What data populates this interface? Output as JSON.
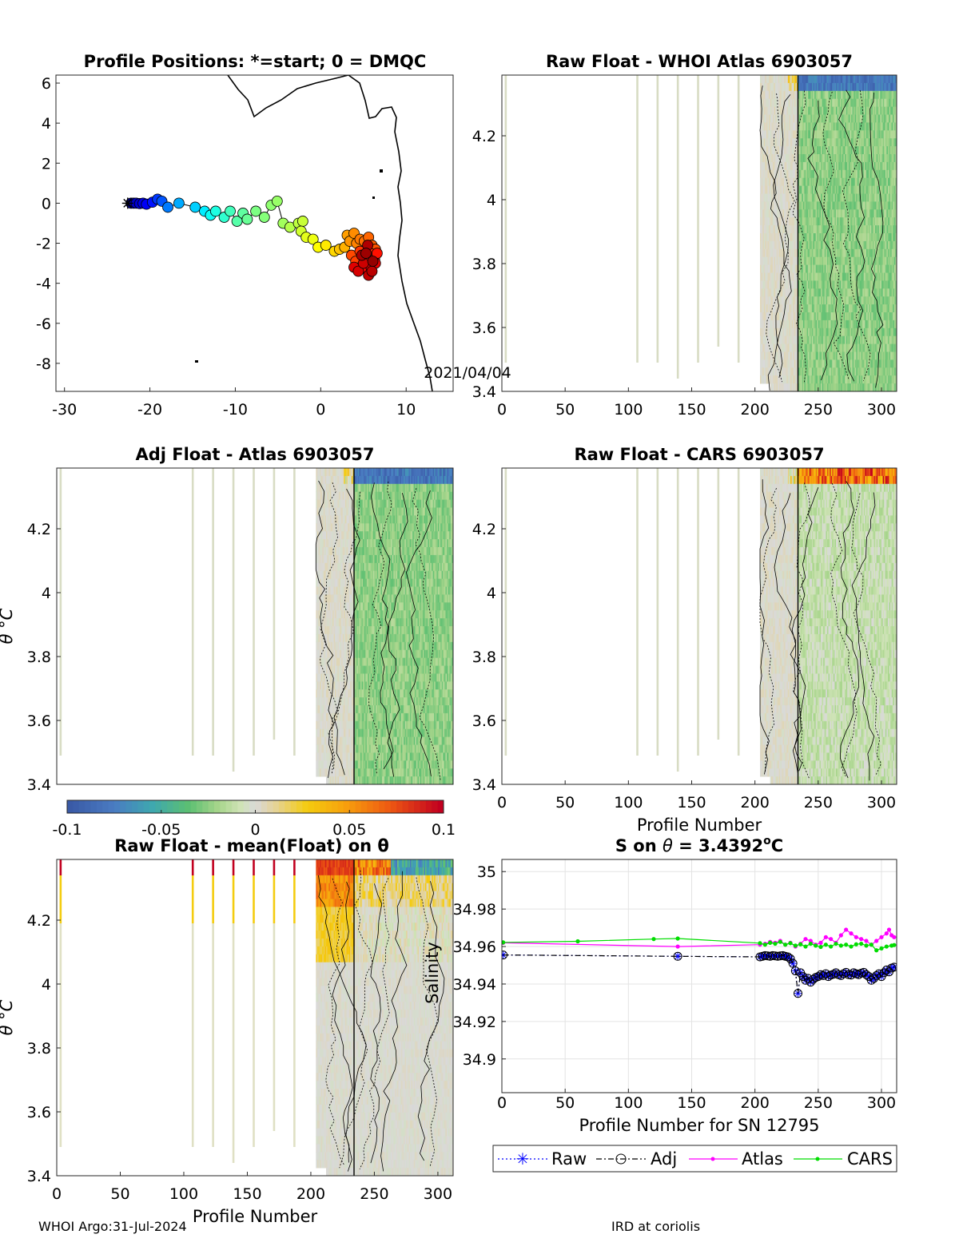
{
  "footer": {
    "left": "WHOI Argo:31-Jul-2024",
    "right": "IRD at coriolis"
  },
  "colorbar": {
    "ticks": [
      "-0.1",
      "-0.05",
      "0",
      "0.05",
      "0.1"
    ],
    "range": [
      -0.1,
      0.1
    ]
  },
  "chart_data": [
    {
      "id": "positions",
      "type": "scatter",
      "title": "Profile Positions: *=start; 0 = DMQC",
      "xlim": [
        -31,
        15.5
      ],
      "ylim": [
        -9.4,
        6.4
      ],
      "xticks": [
        "-30",
        "-20",
        "-10",
        "0",
        "10"
      ],
      "yticks": [
        "6",
        "4",
        "2",
        "0",
        "-2",
        "-4",
        "-6",
        "-8"
      ],
      "annotation": "2021/04/04",
      "start_marker": [
        -22.6,
        0.0
      ],
      "points": [
        [
          -22.2,
          0.0,
          0.0
        ],
        [
          -21.9,
          0.0,
          0.01
        ],
        [
          -21.6,
          0.0,
          0.02
        ],
        [
          -21.2,
          -0.02,
          0.03
        ],
        [
          -20.8,
          0.0,
          0.05
        ],
        [
          -20.4,
          -0.05,
          0.07
        ],
        [
          -19.7,
          0.05,
          0.1
        ],
        [
          -19.1,
          0.2,
          0.14
        ],
        [
          -18.6,
          0.1,
          0.17
        ],
        [
          -17.9,
          -0.2,
          0.21
        ],
        [
          -16.6,
          0.0,
          0.26
        ],
        [
          -14.7,
          -0.2,
          0.3
        ],
        [
          -13.6,
          -0.4,
          0.33
        ],
        [
          -12.9,
          -0.6,
          0.36
        ],
        [
          -12.3,
          -0.4,
          0.38
        ],
        [
          -11.3,
          -0.7,
          0.4
        ],
        [
          -10.6,
          -0.4,
          0.42
        ],
        [
          -9.8,
          -0.9,
          0.44
        ],
        [
          -9.1,
          -0.5,
          0.45
        ],
        [
          -8.6,
          -0.8,
          0.46
        ],
        [
          -7.6,
          -0.4,
          0.48
        ],
        [
          -6.6,
          -0.7,
          0.49
        ],
        [
          -5.8,
          -0.1,
          0.5
        ],
        [
          -5.1,
          0.1,
          0.51
        ],
        [
          -4.4,
          -1.0,
          0.52
        ],
        [
          -3.6,
          -1.2,
          0.54
        ],
        [
          -2.6,
          -1.0,
          0.55
        ],
        [
          -2.1,
          -0.9,
          0.56
        ],
        [
          -2.3,
          -1.4,
          0.57
        ],
        [
          -1.7,
          -1.7,
          0.59
        ],
        [
          -0.9,
          -1.8,
          0.6
        ],
        [
          -0.3,
          -2.2,
          0.62
        ],
        [
          0.6,
          -2.1,
          0.64
        ],
        [
          1.6,
          -2.4,
          0.66
        ],
        [
          2.2,
          -2.3,
          0.68
        ],
        [
          2.8,
          -2.2,
          0.7
        ],
        [
          3.1,
          -1.6,
          0.72
        ],
        [
          3.4,
          -1.9,
          0.73
        ],
        [
          3.9,
          -1.5,
          0.74
        ],
        [
          4.2,
          -2.0,
          0.75
        ],
        [
          4.6,
          -1.8,
          0.76
        ],
        [
          5.1,
          -1.9,
          0.77
        ],
        [
          5.6,
          -1.7,
          0.78
        ],
        [
          6.0,
          -2.1,
          0.79
        ],
        [
          6.4,
          -2.3,
          0.8
        ],
        [
          3.6,
          -2.6,
          0.81
        ],
        [
          4.1,
          -2.9,
          0.82
        ],
        [
          4.6,
          -2.4,
          0.83
        ],
        [
          5.2,
          -2.8,
          0.84
        ],
        [
          5.8,
          -2.5,
          0.85
        ],
        [
          6.3,
          -2.8,
          0.86
        ],
        [
          6.6,
          -2.5,
          0.87
        ],
        [
          4.9,
          -3.1,
          0.88
        ],
        [
          5.4,
          -3.3,
          0.89
        ],
        [
          5.9,
          -3.2,
          0.9
        ],
        [
          6.4,
          -3.0,
          0.91
        ],
        [
          3.9,
          -3.2,
          0.92
        ],
        [
          4.4,
          -3.4,
          0.93
        ],
        [
          5.0,
          -3.0,
          0.94
        ],
        [
          5.6,
          -3.6,
          0.95
        ],
        [
          6.0,
          -3.4,
          0.96
        ],
        [
          5.5,
          -2.1,
          0.97
        ],
        [
          4.8,
          -2.6,
          0.98
        ],
        [
          5.3,
          -2.5,
          0.99
        ],
        [
          6.1,
          -2.9,
          1.0
        ]
      ]
    },
    {
      "id": "raw-whoi",
      "type": "heatmap",
      "title": "Raw Float - WHOI Atlas  6903057",
      "xlim": [
        0,
        312
      ],
      "ylim": [
        3.4,
        4.39
      ],
      "xticks": [
        "0",
        "50",
        "100",
        "150",
        "200",
        "250",
        "300"
      ],
      "yticks": [
        "4.2",
        "4",
        "3.8",
        "3.6",
        "3.4"
      ],
      "ylabel": "θ °C",
      "ylabel_visible": false,
      "offset": 0,
      "sparse_profiles": [
        3,
        107,
        123,
        139,
        155,
        171,
        187
      ]
    },
    {
      "id": "adj-atlas",
      "type": "heatmap",
      "title": "Adj Float - Atlas  6903057",
      "xlim": [
        0,
        312
      ],
      "ylim": [
        3.4,
        4.39
      ],
      "yticks": [
        "4.2",
        "4",
        "3.8",
        "3.6",
        "3.4"
      ],
      "ylabel": "θ °C",
      "offset": 0,
      "sparse_profiles": [
        3,
        107,
        123,
        139,
        155,
        171,
        187
      ]
    },
    {
      "id": "raw-cars",
      "type": "heatmap",
      "title": "Raw Float - CARS  6903057",
      "xlim": [
        0,
        312
      ],
      "ylim": [
        3.4,
        4.39
      ],
      "xticks": [
        "0",
        "50",
        "100",
        "150",
        "200",
        "250",
        "300"
      ],
      "yticks": [
        "4.2",
        "4",
        "3.8",
        "3.6",
        "3.4"
      ],
      "xlabel": "Profile Number",
      "offset": 0.035,
      "sparse_profiles": [
        3,
        107,
        123,
        139,
        155,
        171,
        187
      ]
    },
    {
      "id": "raw-mean",
      "type": "heatmap",
      "title": "Raw Float - mean(Float) on θ",
      "xlim": [
        0,
        312
      ],
      "ylim": [
        3.4,
        4.39
      ],
      "xticks": [
        "0",
        "50",
        "100",
        "150",
        "200",
        "250",
        "300"
      ],
      "yticks": [
        "4.2",
        "4",
        "3.8",
        "3.6",
        "3.4"
      ],
      "ylabel": "θ °C",
      "xlabel": "Profile Number",
      "offset": "mean",
      "sparse_profiles": [
        3,
        107,
        123,
        139,
        155,
        171,
        187
      ]
    },
    {
      "id": "salinity",
      "type": "line",
      "title": "S on θ = 3.4392°C",
      "title_parts": {
        "prefix": "S on ",
        "theta": "θ",
        "eq": " = 3.4392",
        "deg": "o",
        "unit": "C"
      },
      "xlim": [
        0,
        312
      ],
      "ylim": [
        34.882,
        35.0065
      ],
      "xticks": [
        "0",
        "50",
        "100",
        "150",
        "200",
        "250",
        "300"
      ],
      "yticks": [
        "35",
        "34.98",
        "34.96",
        "34.94",
        "34.92",
        "34.9"
      ],
      "xlabel": "Profile Number for SN 12795",
      "ylabel": "Salinity",
      "legend": [
        "Raw",
        "Adj",
        "Atlas",
        "CARS"
      ],
      "legend_position": "below",
      "series": [
        {
          "name": "Raw",
          "color": "#0000ff",
          "x": [
            1,
            139,
            204,
            206,
            208,
            210,
            212,
            214,
            216,
            218,
            220,
            222,
            224,
            226,
            228,
            230,
            232,
            234,
            236,
            238,
            240,
            242,
            244,
            246,
            248,
            250,
            252,
            254,
            256,
            258,
            260,
            262,
            264,
            266,
            268,
            270,
            272,
            274,
            276,
            278,
            280,
            282,
            284,
            286,
            288,
            290,
            292,
            294,
            296,
            298,
            300,
            302,
            304,
            306,
            308,
            310
          ],
          "y": [
            34.9555,
            34.9548,
            34.9545,
            34.9548,
            34.9552,
            34.955,
            34.9548,
            34.9552,
            34.955,
            34.9548,
            34.955,
            34.9552,
            34.9548,
            34.9545,
            34.9535,
            34.951,
            34.947,
            34.935,
            34.946,
            34.944,
            34.942,
            34.943,
            34.941,
            34.9425,
            34.9435,
            34.944,
            34.945,
            34.9445,
            34.9455,
            34.944,
            34.9448,
            34.9452,
            34.946,
            34.945,
            34.9445,
            34.9455,
            34.9462,
            34.945,
            34.9448,
            34.946,
            34.9455,
            34.945,
            34.9458,
            34.9462,
            34.945,
            34.944,
            34.942,
            34.943,
            34.9445,
            34.9455,
            34.944,
            34.946,
            34.9475,
            34.9465,
            34.9485,
            34.949
          ]
        },
        {
          "name": "Adj",
          "color": "#000000",
          "x": [
            1,
            139,
            204,
            206,
            208,
            210,
            212,
            214,
            216,
            218,
            220,
            222,
            224,
            226,
            228,
            230,
            232,
            234,
            236,
            238,
            240,
            242,
            244,
            246,
            248,
            250,
            252,
            254,
            256,
            258,
            260,
            262,
            264,
            266,
            268,
            270,
            272,
            274,
            276,
            278,
            280,
            282,
            284,
            286,
            288,
            290,
            292,
            294,
            296,
            298,
            300,
            302,
            304,
            306,
            308,
            310
          ],
          "y": [
            34.9555,
            34.9548,
            34.9545,
            34.9548,
            34.9552,
            34.955,
            34.9548,
            34.9552,
            34.955,
            34.9548,
            34.955,
            34.9552,
            34.9548,
            34.9545,
            34.9535,
            34.951,
            34.947,
            34.935,
            34.946,
            34.944,
            34.942,
            34.943,
            34.941,
            34.9425,
            34.9435,
            34.944,
            34.945,
            34.9445,
            34.9455,
            34.944,
            34.9448,
            34.9452,
            34.946,
            34.945,
            34.9445,
            34.9455,
            34.9462,
            34.945,
            34.9448,
            34.946,
            34.9455,
            34.945,
            34.9458,
            34.9462,
            34.945,
            34.944,
            34.942,
            34.943,
            34.9445,
            34.9455,
            34.944,
            34.946,
            34.9475,
            34.9465,
            34.9485,
            34.949
          ]
        },
        {
          "name": "Atlas",
          "color": "#ff00ff",
          "x": [
            1,
            139,
            204,
            208,
            212,
            216,
            220,
            224,
            228,
            232,
            236,
            240,
            244,
            248,
            252,
            256,
            260,
            264,
            268,
            272,
            276,
            280,
            284,
            288,
            292,
            296,
            300,
            304,
            306,
            308,
            310
          ],
          "y": [
            34.962,
            34.96,
            34.961,
            34.9615,
            34.9625,
            34.962,
            34.963,
            34.961,
            34.962,
            34.96,
            34.9615,
            34.964,
            34.963,
            34.961,
            34.962,
            34.965,
            34.964,
            34.962,
            34.966,
            34.969,
            34.967,
            34.965,
            34.964,
            34.963,
            34.961,
            34.963,
            34.965,
            34.967,
            34.969,
            34.966,
            34.965
          ]
        },
        {
          "name": "CARS",
          "color": "#00dd00",
          "x": [
            1,
            60,
            120,
            139,
            204,
            208,
            212,
            216,
            220,
            224,
            228,
            232,
            236,
            240,
            244,
            248,
            252,
            256,
            260,
            264,
            268,
            272,
            276,
            280,
            284,
            288,
            292,
            296,
            300,
            304,
            308,
            310
          ],
          "y": [
            34.9622,
            34.9628,
            34.964,
            34.9643,
            34.9618,
            34.961,
            34.962,
            34.9615,
            34.9625,
            34.961,
            34.9618,
            34.9605,
            34.9612,
            34.96,
            34.9615,
            34.9605,
            34.9598,
            34.961,
            34.96,
            34.9615,
            34.9605,
            34.961,
            34.96,
            34.9612,
            34.9615,
            34.9605,
            34.961,
            34.958,
            34.959,
            34.96,
            34.9605,
            34.9608
          ]
        }
      ]
    }
  ]
}
